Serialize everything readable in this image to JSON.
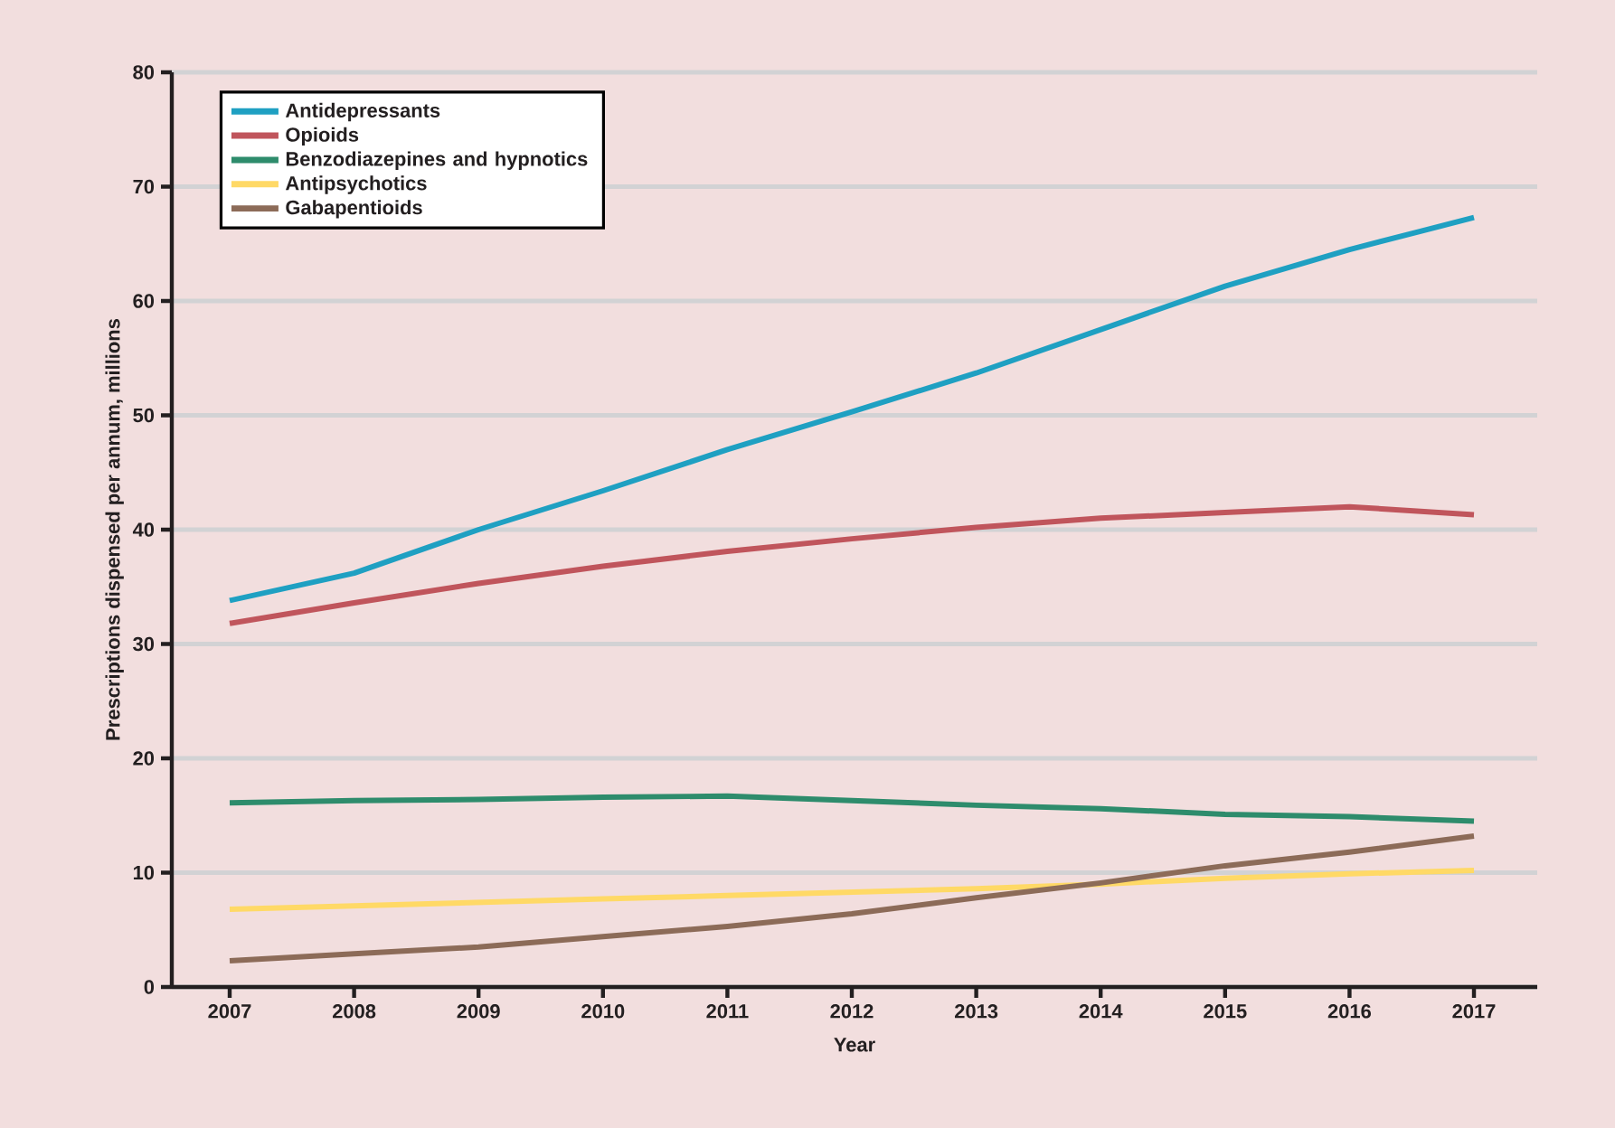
{
  "chart_data": {
    "type": "line",
    "xlabel": "Year",
    "ylabel": "Prescriptions dispensed per annum, millions",
    "categories": [
      "2007",
      "2008",
      "2009",
      "2010",
      "2011",
      "2012",
      "2013",
      "2014",
      "2015",
      "2016",
      "2017"
    ],
    "ylim": [
      0,
      80
    ],
    "yticks": [
      0,
      10,
      20,
      30,
      40,
      50,
      60,
      70,
      80
    ],
    "grid": "y",
    "legend": "top left",
    "marker": "none",
    "line_style": "solid",
    "series": [
      {
        "name": "Antidepressants",
        "color": "#1fa0c2",
        "values": [
          33.8,
          36.2,
          40.0,
          43.4,
          47.0,
          50.3,
          53.7,
          57.5,
          61.3,
          64.5,
          67.3
        ]
      },
      {
        "name": "Opioids",
        "color": "#c0555c",
        "values": [
          31.8,
          33.6,
          35.3,
          36.8,
          38.1,
          39.2,
          40.2,
          41.0,
          41.5,
          42.0,
          41.3
        ]
      },
      {
        "name": "Benzodiazepines and hypnotics",
        "color": "#2e8c6c",
        "values": [
          16.1,
          16.3,
          16.4,
          16.6,
          16.7,
          16.3,
          15.9,
          15.6,
          15.1,
          14.9,
          14.5
        ]
      },
      {
        "name": "Antipsychotics",
        "color": "#ffd966",
        "values": [
          6.8,
          7.1,
          7.4,
          7.7,
          8.0,
          8.3,
          8.6,
          9.0,
          9.5,
          9.9,
          10.2
        ]
      },
      {
        "name": "Gabapentioids",
        "color": "#8c6b58",
        "values": [
          2.3,
          2.9,
          3.5,
          4.4,
          5.3,
          6.4,
          7.8,
          9.1,
          10.6,
          11.8,
          13.2
        ]
      }
    ]
  }
}
